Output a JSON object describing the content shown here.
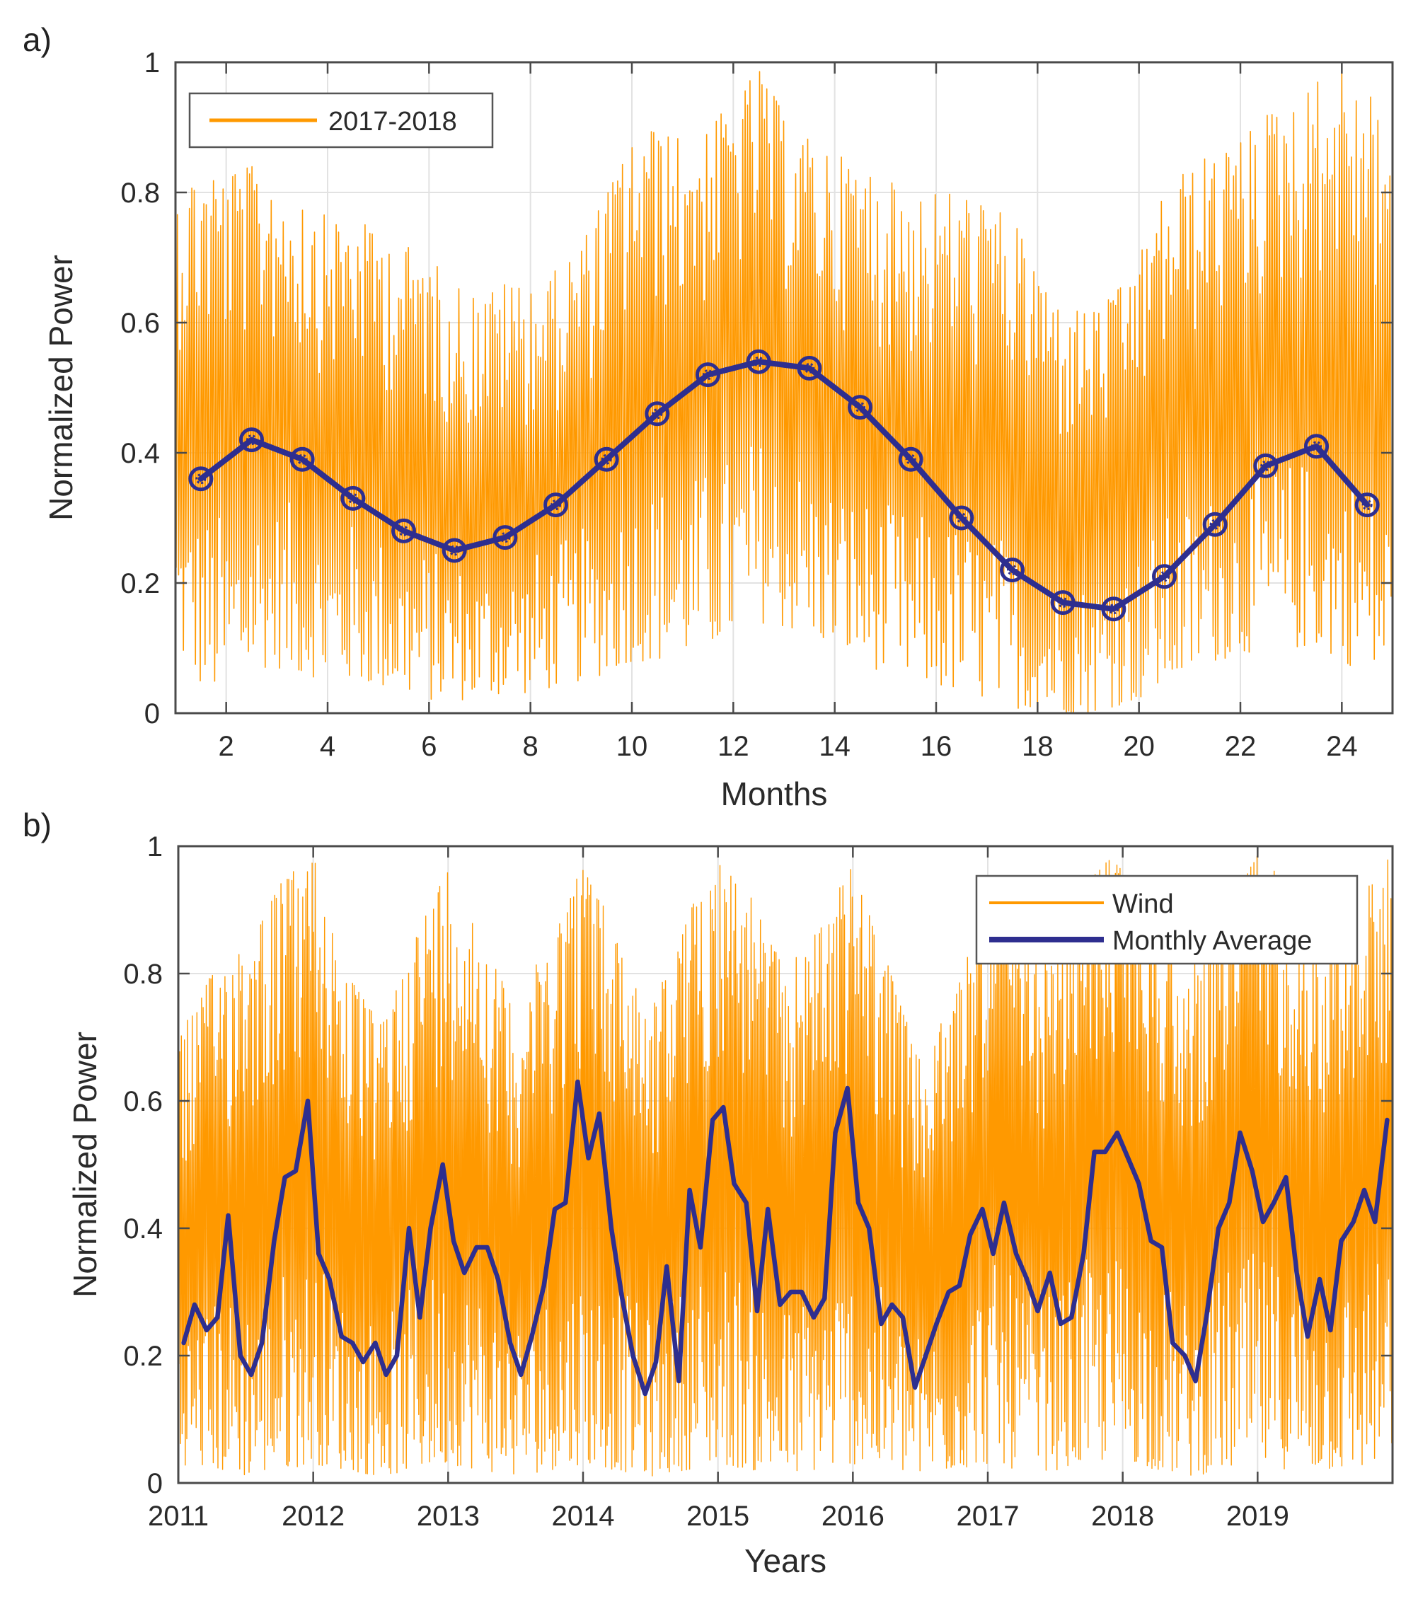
{
  "colors": {
    "wind": "#FF9900",
    "average": "#2E2E8F",
    "grid": "#E2E2E2",
    "frame": "#4A4A4A"
  },
  "chart_data": [
    {
      "panel": "a)",
      "type": "line",
      "title": "",
      "xlabel": "Months",
      "ylabel": "Normalized Power",
      "xlim": [
        1,
        25
      ],
      "ylim": [
        0,
        1
      ],
      "xticks": [
        2,
        4,
        6,
        8,
        10,
        12,
        14,
        16,
        18,
        20,
        22,
        24
      ],
      "yticks": [
        0,
        0.2,
        0.4,
        0.6,
        0.8,
        1
      ],
      "xtick_labels": [
        "2",
        "4",
        "6",
        "8",
        "10",
        "12",
        "14",
        "16",
        "18",
        "20",
        "22",
        "24"
      ],
      "ytick_labels": [
        "0",
        "0.2",
        "0.4",
        "0.6",
        "0.8",
        "1"
      ],
      "grid": true,
      "legend": {
        "position": "top-left",
        "entries": [
          "2017-2018"
        ]
      },
      "series": [
        {
          "name": "2017-2018",
          "style": "high-frequency orange trace",
          "x": [
            1.0,
            1.5,
            2.0,
            2.5,
            3.0,
            3.5,
            4.0,
            4.5,
            5.0,
            5.5,
            6.0,
            6.5,
            7.0,
            7.5,
            8.0,
            8.5,
            9.0,
            9.5,
            10.0,
            10.5,
            11.0,
            11.5,
            12.0,
            12.5,
            13.0,
            13.5,
            14.0,
            14.5,
            15.0,
            15.5,
            16.0,
            16.5,
            17.0,
            17.5,
            18.0,
            18.5,
            19.0,
            19.5,
            20.0,
            20.5,
            21.0,
            21.5,
            22.0,
            22.5,
            23.0,
            23.5,
            24.0,
            24.5,
            25.0
          ],
          "upper_envelope": [
            0.8,
            0.84,
            0.83,
            0.84,
            0.82,
            0.8,
            0.76,
            0.76,
            0.74,
            0.72,
            0.7,
            0.66,
            0.64,
            0.66,
            0.66,
            0.68,
            0.72,
            0.8,
            0.88,
            0.9,
            0.88,
            0.9,
            0.94,
            0.99,
            0.92,
            0.88,
            0.86,
            0.84,
            0.82,
            0.8,
            0.8,
            0.8,
            0.78,
            0.76,
            0.68,
            0.62,
            0.62,
            0.64,
            0.7,
            0.8,
            0.84,
            0.86,
            0.88,
            0.92,
            0.94,
            0.97,
            0.99,
            0.96,
            0.9
          ],
          "lower_envelope": [
            0.1,
            0.04,
            0.03,
            0.07,
            0.07,
            0.06,
            0.05,
            0.05,
            0.04,
            0.03,
            0.02,
            0.02,
            0.02,
            0.03,
            0.03,
            0.04,
            0.05,
            0.06,
            0.08,
            0.08,
            0.09,
            0.1,
            0.12,
            0.14,
            0.13,
            0.12,
            0.1,
            0.08,
            0.06,
            0.05,
            0.04,
            0.03,
            0.02,
            0.01,
            0.0,
            0.0,
            0.0,
            0.01,
            0.02,
            0.04,
            0.06,
            0.08,
            0.09,
            0.1,
            0.1,
            0.1,
            0.08,
            0.06,
            0.05
          ]
        },
        {
          "name": "Monthly Average",
          "style": "dark blue line with circle markers",
          "x": [
            1.5,
            2.5,
            3.5,
            4.5,
            5.5,
            6.5,
            7.5,
            8.5,
            9.5,
            10.5,
            11.5,
            12.5,
            13.5,
            14.5,
            15.5,
            16.5,
            17.5,
            18.5,
            19.5,
            20.5,
            21.5,
            22.5,
            23.5,
            24.5
          ],
          "values": [
            0.36,
            0.42,
            0.39,
            0.33,
            0.28,
            0.25,
            0.27,
            0.32,
            0.39,
            0.46,
            0.52,
            0.54,
            0.53,
            0.47,
            0.39,
            0.3,
            0.22,
            0.17,
            0.16,
            0.21,
            0.29,
            0.38,
            0.41,
            0.32
          ]
        }
      ]
    },
    {
      "panel": "b)",
      "type": "line",
      "title": "",
      "xlabel": "Years",
      "ylabel": "Normalized Power",
      "xlim": [
        2011,
        2020
      ],
      "ylim": [
        0,
        1
      ],
      "xticks": [
        2011,
        2012,
        2013,
        2014,
        2015,
        2016,
        2017,
        2018,
        2019
      ],
      "yticks": [
        0,
        0.2,
        0.4,
        0.6,
        0.8,
        1
      ],
      "xtick_labels": [
        "2011",
        "2012",
        "2013",
        "2014",
        "2015",
        "2016",
        "2017",
        "2018",
        "2019"
      ],
      "ytick_labels": [
        "0",
        "0.2",
        "0.4",
        "0.6",
        "0.8",
        "1"
      ],
      "grid": true,
      "legend": {
        "position": "top-right",
        "entries": [
          "Wind",
          "Monthly Average"
        ]
      },
      "series": [
        {
          "name": "Wind",
          "style": "high-frequency orange trace",
          "x": [
            2011.0,
            2011.25,
            2011.5,
            2011.75,
            2012.0,
            2012.25,
            2012.5,
            2012.75,
            2013.0,
            2013.25,
            2013.5,
            2013.75,
            2014.0,
            2014.25,
            2014.5,
            2014.75,
            2015.0,
            2015.25,
            2015.5,
            2015.75,
            2016.0,
            2016.25,
            2016.5,
            2016.75,
            2017.0,
            2017.25,
            2017.5,
            2017.75,
            2018.0,
            2018.25,
            2018.5,
            2018.75,
            2019.0,
            2019.25,
            2019.5,
            2019.75,
            2020.0
          ],
          "upper_envelope": [
            0.7,
            0.8,
            0.86,
            0.94,
            0.99,
            0.8,
            0.72,
            0.86,
            0.97,
            0.86,
            0.74,
            0.86,
            0.98,
            0.86,
            0.74,
            0.88,
            0.99,
            0.92,
            0.8,
            0.88,
            0.97,
            0.82,
            0.66,
            0.76,
            0.96,
            0.86,
            0.82,
            0.96,
            0.99,
            0.9,
            0.8,
            0.94,
            0.99,
            0.94,
            0.86,
            0.92,
            0.99
          ],
          "lower_envelope": [
            0.03,
            0.02,
            0.01,
            0.02,
            0.03,
            0.02,
            0.01,
            0.02,
            0.03,
            0.02,
            0.01,
            0.02,
            0.03,
            0.02,
            0.01,
            0.02,
            0.03,
            0.02,
            0.01,
            0.02,
            0.03,
            0.02,
            0.01,
            0.02,
            0.03,
            0.02,
            0.02,
            0.03,
            0.04,
            0.02,
            0.01,
            0.02,
            0.03,
            0.02,
            0.02,
            0.02,
            0.04
          ]
        },
        {
          "name": "Monthly Average",
          "style": "dark blue line",
          "x": [
            2011.04,
            2011.12,
            2011.21,
            2011.29,
            2011.37,
            2011.46,
            2011.54,
            2011.62,
            2011.71,
            2011.79,
            2011.87,
            2011.96,
            2012.04,
            2012.12,
            2012.21,
            2012.29,
            2012.37,
            2012.46,
            2012.54,
            2012.62,
            2012.71,
            2012.79,
            2012.87,
            2012.96,
            2013.04,
            2013.12,
            2013.21,
            2013.29,
            2013.37,
            2013.46,
            2013.54,
            2013.62,
            2013.71,
            2013.79,
            2013.87,
            2013.96,
            2014.04,
            2014.12,
            2014.21,
            2014.29,
            2014.37,
            2014.46,
            2014.54,
            2014.62,
            2014.71,
            2014.79,
            2014.87,
            2014.96,
            2015.04,
            2015.12,
            2015.21,
            2015.29,
            2015.37,
            2015.46,
            2015.54,
            2015.62,
            2015.71,
            2015.79,
            2015.87,
            2015.96,
            2016.04,
            2016.12,
            2016.21,
            2016.29,
            2016.37,
            2016.46,
            2016.54,
            2016.62,
            2016.71,
            2016.79,
            2016.87,
            2016.96,
            2017.04,
            2017.12,
            2017.21,
            2017.29,
            2017.37,
            2017.46,
            2017.54,
            2017.62,
            2017.71,
            2017.79,
            2017.87,
            2017.96,
            2018.04,
            2018.12,
            2018.21,
            2018.29,
            2018.37,
            2018.46,
            2018.54,
            2018.62,
            2018.71,
            2018.79,
            2018.87,
            2018.96,
            2019.04,
            2019.12,
            2019.21,
            2019.29,
            2019.37,
            2019.46,
            2019.54,
            2019.62,
            2019.71,
            2019.79,
            2019.87,
            2019.96
          ],
          "values": [
            0.22,
            0.28,
            0.24,
            0.26,
            0.42,
            0.2,
            0.17,
            0.22,
            0.38,
            0.48,
            0.49,
            0.6,
            0.36,
            0.32,
            0.23,
            0.22,
            0.19,
            0.22,
            0.17,
            0.2,
            0.4,
            0.26,
            0.4,
            0.5,
            0.38,
            0.33,
            0.37,
            0.37,
            0.32,
            0.22,
            0.17,
            0.23,
            0.31,
            0.43,
            0.44,
            0.63,
            0.51,
            0.58,
            0.4,
            0.29,
            0.2,
            0.14,
            0.19,
            0.34,
            0.16,
            0.46,
            0.37,
            0.57,
            0.59,
            0.47,
            0.44,
            0.27,
            0.43,
            0.28,
            0.3,
            0.3,
            0.26,
            0.29,
            0.55,
            0.62,
            0.44,
            0.4,
            0.25,
            0.28,
            0.26,
            0.15,
            0.2,
            0.25,
            0.3,
            0.31,
            0.39,
            0.43,
            0.36,
            0.44,
            0.36,
            0.32,
            0.27,
            0.33,
            0.25,
            0.26,
            0.36,
            0.52,
            0.52,
            0.55,
            0.51,
            0.47,
            0.38,
            0.37,
            0.22,
            0.2,
            0.16,
            0.26,
            0.4,
            0.44,
            0.55,
            0.49,
            0.41,
            0.44,
            0.48,
            0.33,
            0.23,
            0.32,
            0.24,
            0.38,
            0.41,
            0.46,
            0.41,
            0.57
          ]
        }
      ]
    }
  ]
}
